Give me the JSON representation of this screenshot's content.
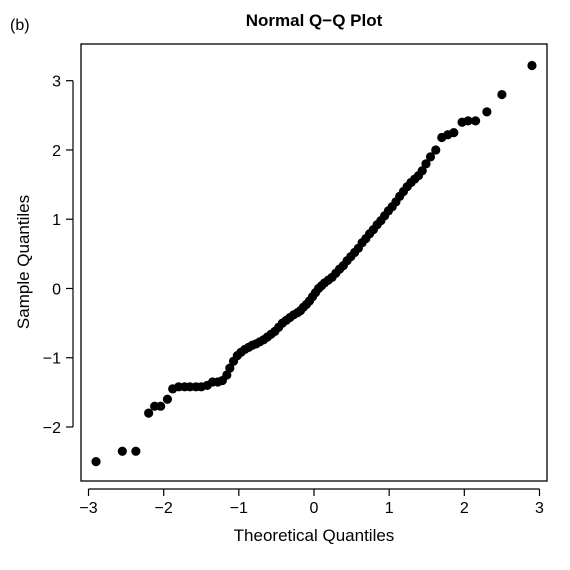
{
  "panel_label": "(b)",
  "chart_data": {
    "type": "scatter",
    "title": "Normal Q−Q Plot",
    "xlabel": "Theoretical Quantiles",
    "ylabel": "Sample Quantiles",
    "xlim": [
      -3.1,
      3.1
    ],
    "ylim": [
      -2.78,
      3.53
    ],
    "x_ticks": [
      -3,
      -2,
      -1,
      0,
      1,
      2,
      3
    ],
    "x_tick_labels": [
      "−3",
      "−2",
      "−1",
      "0",
      "1",
      "2",
      "3"
    ],
    "y_ticks": [
      -2,
      -1,
      0,
      1,
      2,
      3
    ],
    "y_tick_labels": [
      "−2",
      "−1",
      "0",
      "1",
      "2",
      "3"
    ],
    "grid": false,
    "marker_color": "#000000",
    "points": [
      [
        -2.9,
        -2.5
      ],
      [
        -2.55,
        -2.35
      ],
      [
        -2.37,
        -2.35
      ],
      [
        -2.2,
        -1.8
      ],
      [
        -2.12,
        -1.7
      ],
      [
        -2.04,
        -1.7
      ],
      [
        -1.95,
        -1.6
      ],
      [
        -1.88,
        -1.45
      ],
      [
        -1.8,
        -1.42
      ],
      [
        -1.72,
        -1.42
      ],
      [
        -1.65,
        -1.42
      ],
      [
        -1.57,
        -1.42
      ],
      [
        -1.5,
        -1.42
      ],
      [
        -1.42,
        -1.4
      ],
      [
        -1.35,
        -1.35
      ],
      [
        -1.28,
        -1.35
      ],
      [
        -1.22,
        -1.33
      ],
      [
        -1.16,
        -1.25
      ],
      [
        -1.12,
        -1.15
      ],
      [
        -1.07,
        -1.05
      ],
      [
        -1.02,
        -0.97
      ],
      [
        -0.97,
        -0.92
      ],
      [
        -0.92,
        -0.88
      ],
      [
        -0.87,
        -0.85
      ],
      [
        -0.82,
        -0.82
      ],
      [
        -0.77,
        -0.8
      ],
      [
        -0.72,
        -0.77
      ],
      [
        -0.67,
        -0.74
      ],
      [
        -0.62,
        -0.7
      ],
      [
        -0.57,
        -0.66
      ],
      [
        -0.52,
        -0.62
      ],
      [
        -0.47,
        -0.56
      ],
      [
        -0.42,
        -0.5
      ],
      [
        -0.37,
        -0.46
      ],
      [
        -0.32,
        -0.42
      ],
      [
        -0.27,
        -0.38
      ],
      [
        -0.22,
        -0.35
      ],
      [
        -0.18,
        -0.32
      ],
      [
        -0.14,
        -0.27
      ],
      [
        -0.1,
        -0.23
      ],
      [
        -0.06,
        -0.18
      ],
      [
        -0.02,
        -0.12
      ],
      [
        0.02,
        -0.06
      ],
      [
        0.06,
        0.0
      ],
      [
        0.1,
        0.04
      ],
      [
        0.14,
        0.08
      ],
      [
        0.19,
        0.12
      ],
      [
        0.24,
        0.16
      ],
      [
        0.29,
        0.22
      ],
      [
        0.34,
        0.28
      ],
      [
        0.39,
        0.33
      ],
      [
        0.44,
        0.4
      ],
      [
        0.49,
        0.46
      ],
      [
        0.54,
        0.52
      ],
      [
        0.59,
        0.58
      ],
      [
        0.64,
        0.66
      ],
      [
        0.69,
        0.72
      ],
      [
        0.74,
        0.79
      ],
      [
        0.79,
        0.85
      ],
      [
        0.84,
        0.92
      ],
      [
        0.89,
        0.98
      ],
      [
        0.94,
        1.05
      ],
      [
        0.99,
        1.12
      ],
      [
        1.04,
        1.18
      ],
      [
        1.09,
        1.25
      ],
      [
        1.14,
        1.33
      ],
      [
        1.19,
        1.4
      ],
      [
        1.24,
        1.47
      ],
      [
        1.29,
        1.53
      ],
      [
        1.34,
        1.58
      ],
      [
        1.39,
        1.63
      ],
      [
        1.44,
        1.7
      ],
      [
        1.49,
        1.8
      ],
      [
        1.55,
        1.9
      ],
      [
        1.62,
        2.0
      ],
      [
        1.7,
        2.18
      ],
      [
        1.78,
        2.22
      ],
      [
        1.86,
        2.25
      ],
      [
        1.97,
        2.4
      ],
      [
        2.05,
        2.42
      ],
      [
        2.15,
        2.42
      ],
      [
        2.3,
        2.55
      ],
      [
        2.5,
        2.8
      ],
      [
        2.9,
        3.22
      ]
    ]
  }
}
